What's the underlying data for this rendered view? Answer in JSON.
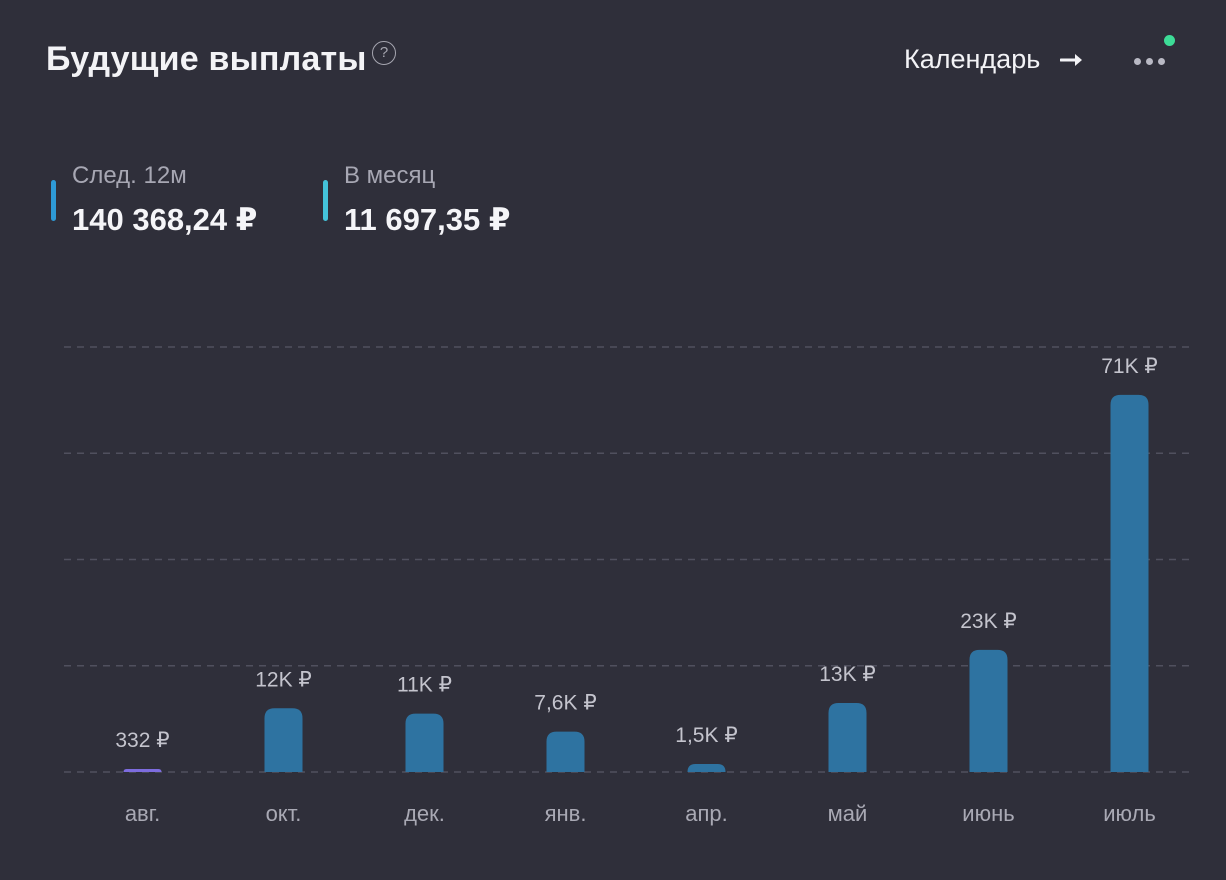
{
  "header": {
    "title": "Будущие выплаты",
    "help_icon": "question-circle-icon",
    "help_glyph": "?",
    "calendar_label": "Календарь",
    "calendar_icon": "arrow-right-icon",
    "more_icon": "more-horizontal-icon",
    "status_color": "#3ddc97"
  },
  "stats": [
    {
      "label": "След. 12м",
      "value": "140 368,24 ₽",
      "color": "#2e9ad6"
    },
    {
      "label": "В месяц",
      "value": "11 697,35 ₽",
      "color": "#44c3da"
    }
  ],
  "colors": {
    "background": "#2f2f3a",
    "bar": "#2e73a1",
    "bar_small": "#7d6cde",
    "grid": "#50505e"
  },
  "chart_data": {
    "type": "bar",
    "categories": [
      "авг.",
      "окт.",
      "дек.",
      "янв.",
      "апр.",
      "май",
      "июнь",
      "июль"
    ],
    "values": [
      332,
      12000,
      11000,
      7600,
      1500,
      13000,
      23000,
      71000
    ],
    "labels": [
      "332 ₽",
      "12K ₽",
      "11K ₽",
      "7,6K ₽",
      "1,5K ₽",
      "13K ₽",
      "23K ₽",
      "71K ₽"
    ],
    "title": "",
    "xlabel": "",
    "ylabel": "",
    "ylim": [
      0,
      80000
    ],
    "grid": true,
    "legend": "none"
  }
}
